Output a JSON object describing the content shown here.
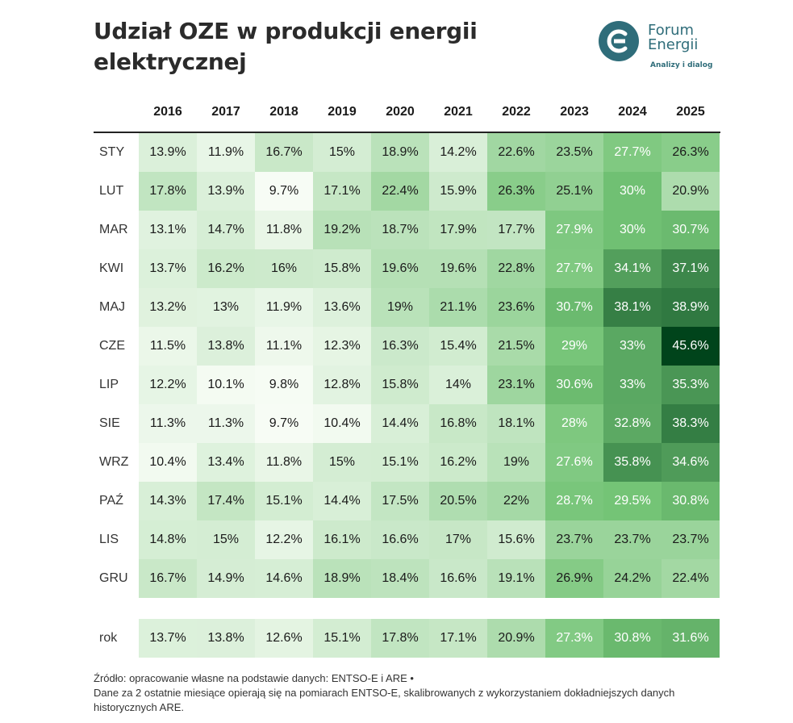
{
  "title": "Udział OZE w produkcji energii elektrycznej",
  "logo": {
    "name_line1": "Forum",
    "name_line2": "Energii",
    "tagline": "Analizy i dialog",
    "color": "#2f6d7a"
  },
  "chart_data": {
    "type": "heatmap",
    "title": "Udział OZE w produkcji energii elektrycznej",
    "columns": [
      "2016",
      "2017",
      "2018",
      "2019",
      "2020",
      "2021",
      "2022",
      "2023",
      "2024",
      "2025"
    ],
    "rows": [
      "STY",
      "LUT",
      "MAR",
      "KWI",
      "MAJ",
      "CZE",
      "LIP",
      "SIE",
      "WRZ",
      "PAŹ",
      "LIS",
      "GRU"
    ],
    "values": [
      [
        13.9,
        11.9,
        16.7,
        15,
        18.9,
        14.2,
        22.6,
        23.5,
        27.7,
        26.3
      ],
      [
        17.8,
        13.9,
        9.7,
        17.1,
        22.4,
        15.9,
        26.3,
        25.1,
        30,
        20.9
      ],
      [
        13.1,
        14.7,
        11.8,
        19.2,
        18.7,
        17.9,
        17.7,
        27.9,
        30,
        30.7
      ],
      [
        13.7,
        16.2,
        16,
        15.8,
        19.6,
        19.6,
        22.8,
        27.7,
        34.1,
        37.1
      ],
      [
        13.2,
        13,
        11.9,
        13.6,
        19,
        21.1,
        23.6,
        30.7,
        38.1,
        38.9
      ],
      [
        11.5,
        13.8,
        11.1,
        12.3,
        16.3,
        15.4,
        21.5,
        29,
        33,
        45.6
      ],
      [
        12.2,
        10.1,
        9.8,
        12.8,
        15.8,
        14,
        23.1,
        30.6,
        33,
        35.3
      ],
      [
        11.3,
        11.3,
        9.7,
        10.4,
        14.4,
        16.8,
        18.1,
        28,
        32.8,
        38.3
      ],
      [
        10.4,
        13.4,
        11.8,
        15,
        15.1,
        16.2,
        19,
        27.6,
        35.8,
        34.6
      ],
      [
        14.3,
        17.4,
        15.1,
        14.4,
        17.5,
        20.5,
        22,
        28.7,
        29.5,
        30.8
      ],
      [
        14.8,
        15,
        12.2,
        16.1,
        16.6,
        17,
        15.6,
        23.7,
        23.7,
        23.7
      ],
      [
        16.7,
        14.9,
        14.6,
        18.9,
        18.4,
        16.6,
        19.1,
        26.9,
        24.2,
        22.4
      ]
    ],
    "summary_row": {
      "label": "rok",
      "values": [
        13.7,
        13.8,
        12.6,
        15.1,
        17.8,
        17.1,
        20.9,
        27.3,
        30.8,
        31.6
      ]
    },
    "unit": "%",
    "color_scale": {
      "low": "#f7fcf5",
      "mid": "#74c476",
      "high": "#00441b"
    }
  },
  "source_lines": [
    "Źródło: opracowanie własne na podstawie danych: ENTSO-E i ARE •",
    "Dane za 2 ostatnie miesiące opierają się na pomiarach ENTSO-E, skalibrowanych z wykorzystaniem dokładniejszych danych historycznych ARE."
  ]
}
